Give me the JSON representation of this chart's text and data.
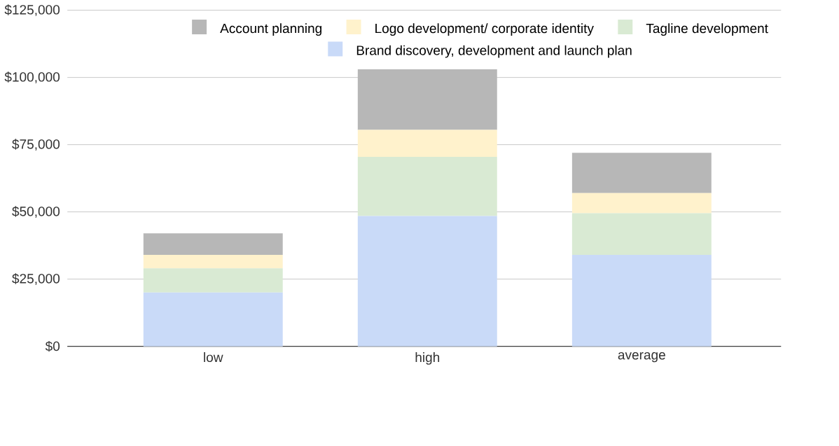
{
  "chart_data": {
    "type": "bar",
    "stacked": true,
    "categories": [
      "low",
      "high",
      "average"
    ],
    "series": [
      {
        "name": "Brand discovery, development and launch plan",
        "color": "#c9daf8",
        "values": [
          20000,
          48500,
          34000
        ]
      },
      {
        "name": "Tagline development",
        "color": "#d9ead3",
        "values": [
          9000,
          22000,
          15500
        ]
      },
      {
        "name": "Logo development/ corporate identity",
        "color": "#fff2cc",
        "values": [
          5000,
          10000,
          7500
        ]
      },
      {
        "name": "Account planning",
        "color": "#b7b7b7",
        "values": [
          8000,
          22500,
          15000
        ]
      }
    ],
    "ylim": [
      0,
      125000
    ],
    "yticks": [
      {
        "value": 0,
        "label": "$0"
      },
      {
        "value": 25000,
        "label": "$25,000"
      },
      {
        "value": 50000,
        "label": "$50,000"
      },
      {
        "value": 75000,
        "label": "$75,000"
      },
      {
        "value": 100000,
        "label": "$100,000"
      },
      {
        "value": 125000,
        "label": "$125,000"
      }
    ],
    "grid": "y",
    "legend": "top"
  }
}
